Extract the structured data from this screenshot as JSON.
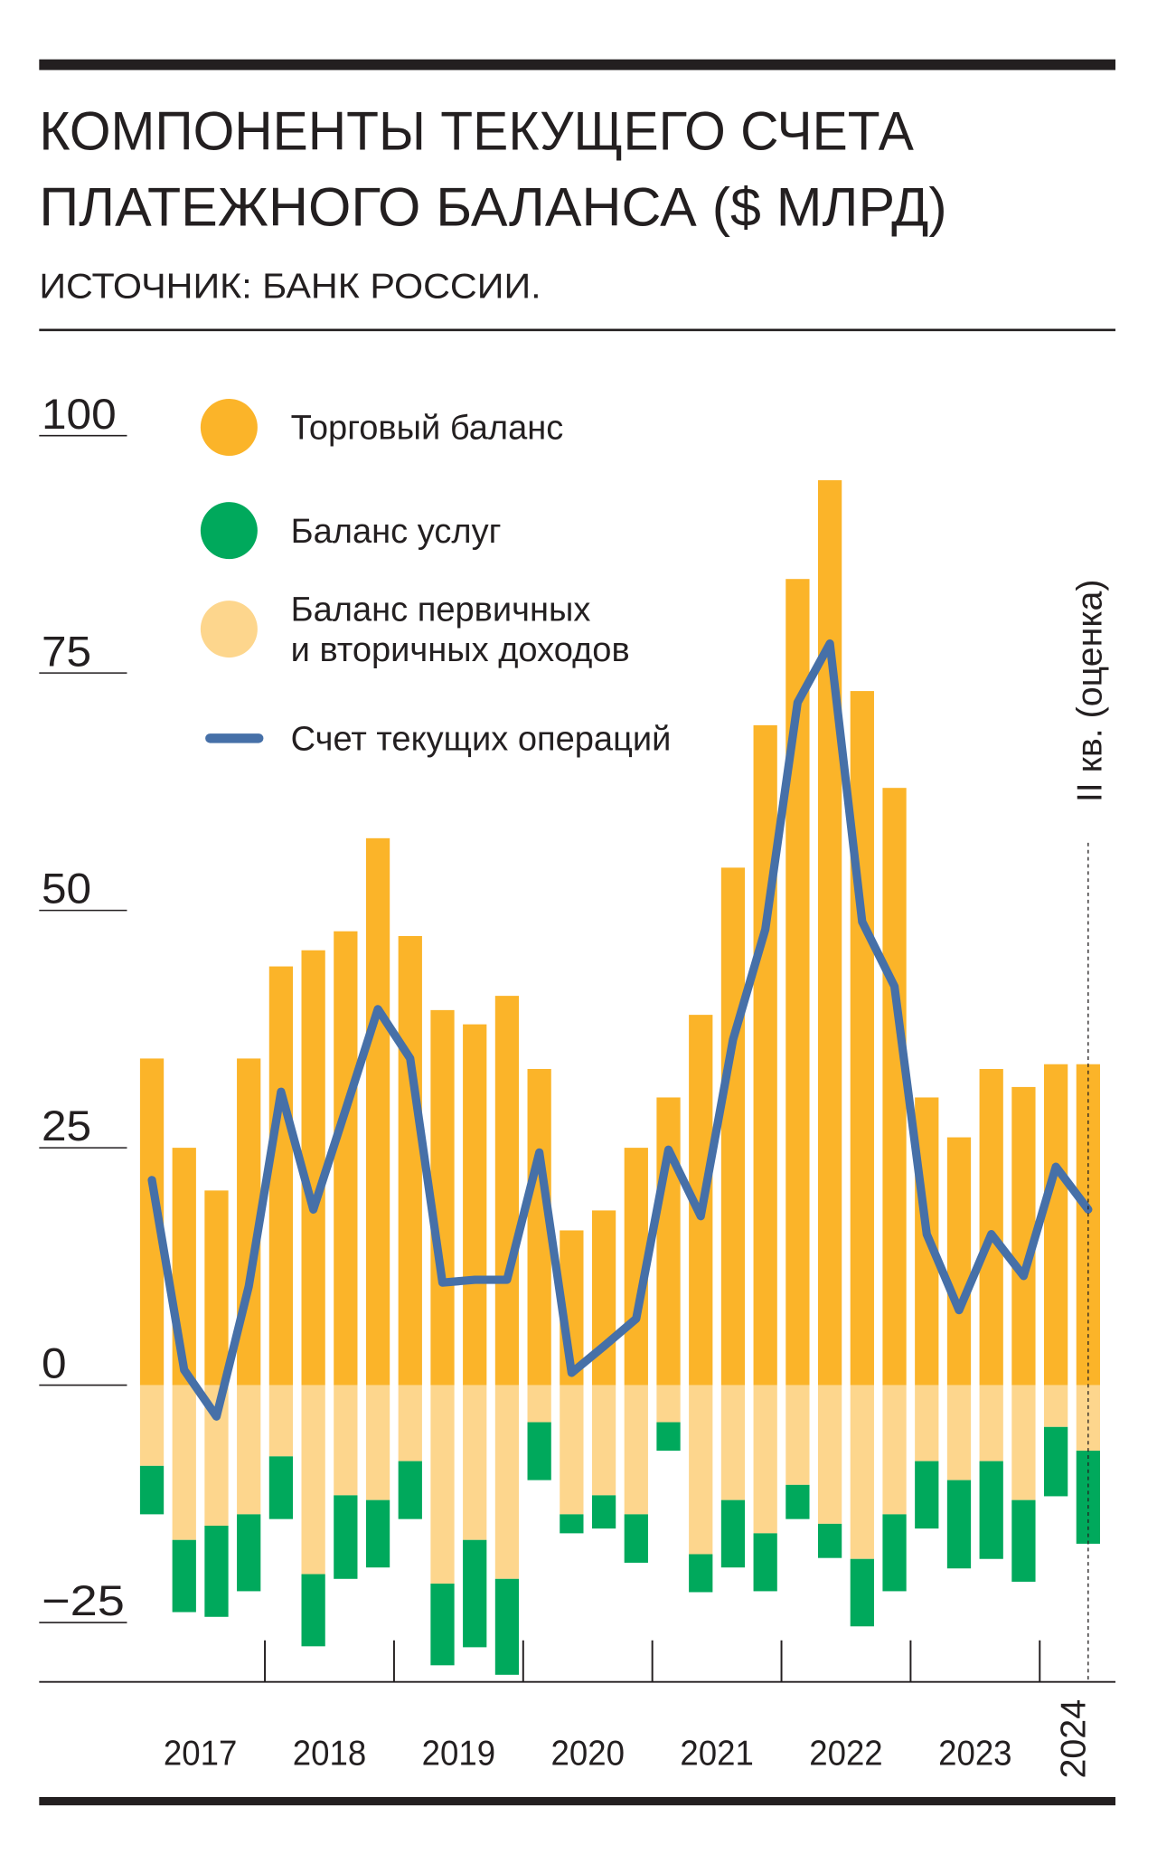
{
  "chart_data": {
    "type": "bar",
    "title": [
      "КОМПОНЕНТЫ ТЕКУЩЕГО СЧЕТА",
      "ПЛАТЕЖНОГО БАЛАНСА ($ МЛРД)"
    ],
    "subtitle": "ИСТОЧНИК: БАНК РОССИИ.",
    "annotation": "II кв. (оценка)",
    "categories": [
      null,
      null,
      null,
      null,
      null,
      null,
      null,
      null,
      null,
      null,
      null,
      null,
      null,
      null,
      null,
      null,
      null,
      null,
      null,
      null,
      null,
      null,
      null,
      null,
      null,
      null,
      null,
      null,
      null,
      null
    ],
    "year_labels": [
      "2017",
      "2018",
      "2019",
      "2020",
      "2021",
      "2022",
      "2023",
      "2024"
    ],
    "series": [
      {
        "name": "Торговый баланс",
        "color": "#fbb429",
        "kind": "bar",
        "values": [
          34.4,
          25,
          20.5,
          34.4,
          44.1,
          45.8,
          47.8,
          57.6,
          47.3,
          39.5,
          38,
          41,
          33.3,
          16.3,
          18.4,
          25,
          30.3,
          39,
          54.5,
          69.5,
          84.9,
          95.3,
          73.1,
          62.9,
          30.3,
          26.1,
          33.3,
          31.4,
          33.8,
          33.8
        ]
      },
      {
        "name": "Баланс услуг",
        "color": "#00a95c",
        "kind": "bar",
        "values": [
          -5.1,
          -7.6,
          -9.6,
          -8.1,
          -6.6,
          -7.6,
          -8.8,
          -7.1,
          -6.1,
          -8.6,
          -11.3,
          -10.1,
          -6.1,
          -2,
          -3.5,
          -5.1,
          -3,
          -4,
          -7.1,
          -6.1,
          -3.6,
          -3.6,
          -7.1,
          -8.1,
          -7.1,
          -9.3,
          -10.3,
          -8.6,
          -7.3,
          -9.8
        ]
      },
      {
        "name": "Баланс первичных\nи вторичных доходов",
        "color": "#fdd68d",
        "kind": "bar",
        "values": [
          -8.5,
          -16.3,
          -14.8,
          -13.6,
          -7.5,
          -19.9,
          -11.6,
          -12.1,
          -8,
          -20.9,
          -16.3,
          -20.4,
          -3.9,
          -13.6,
          -11.6,
          -13.6,
          -3.9,
          -17.8,
          -12.1,
          -15.6,
          -10.5,
          -14.6,
          -18.3,
          -13.6,
          -8,
          -10,
          -8,
          -12.1,
          -4.4,
          -6.9
        ]
      },
      {
        "name": "Счет текущих операций",
        "color": "#4670a8",
        "kind": "line",
        "values": [
          21.6,
          1.6,
          -3.3,
          10.4,
          30.9,
          18.5,
          29,
          39.6,
          34.4,
          10.8,
          11.1,
          11.1,
          24.5,
          1.3,
          4.1,
          7,
          24.8,
          17.8,
          36.4,
          48,
          71.9,
          78.1,
          48.8,
          42,
          15.9,
          7.9,
          15.9,
          11.5,
          23,
          18.5
        ]
      }
    ],
    "ylim": [
      -31.25,
      100
    ],
    "yticks": [
      100,
      75,
      50,
      25,
      0,
      {
        "value": -25,
        "label": "−25"
      }
    ],
    "grid": false
  }
}
